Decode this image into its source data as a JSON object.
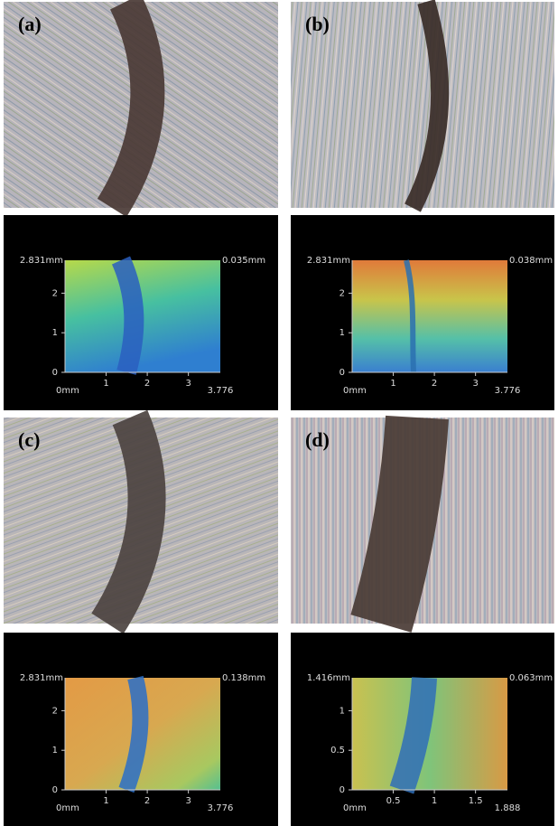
{
  "panels": [
    {
      "label": "(a)",
      "heightmap": {
        "y_max_label": "2.831mm",
        "z_label": "0.035mm",
        "origin_label": "0mm",
        "yticks": [
          0,
          1,
          2
        ],
        "xticks": [
          1,
          2,
          3
        ],
        "x_max_label": "3.776"
      }
    },
    {
      "label": "(b)",
      "heightmap": {
        "y_max_label": "2.831mm",
        "z_label": "0.038mm",
        "origin_label": "0mm",
        "yticks": [
          0,
          1,
          2
        ],
        "xticks": [
          1,
          2,
          3
        ],
        "x_max_label": "3.776"
      }
    },
    {
      "label": "(c)",
      "heightmap": {
        "y_max_label": "2.831mm",
        "z_label": "0.138mm",
        "origin_label": "0mm",
        "yticks": [
          0,
          1,
          2
        ],
        "xticks": [
          1,
          2,
          3
        ],
        "x_max_label": "3.776"
      }
    },
    {
      "label": "(d)",
      "heightmap": {
        "y_max_label": "1.416mm",
        "z_label": "0.063mm",
        "origin_label": "0mm",
        "yticks": [
          0,
          0.5,
          1
        ],
        "xticks": [
          0.5,
          1,
          1.5
        ],
        "x_max_label": "1.888"
      }
    }
  ]
}
